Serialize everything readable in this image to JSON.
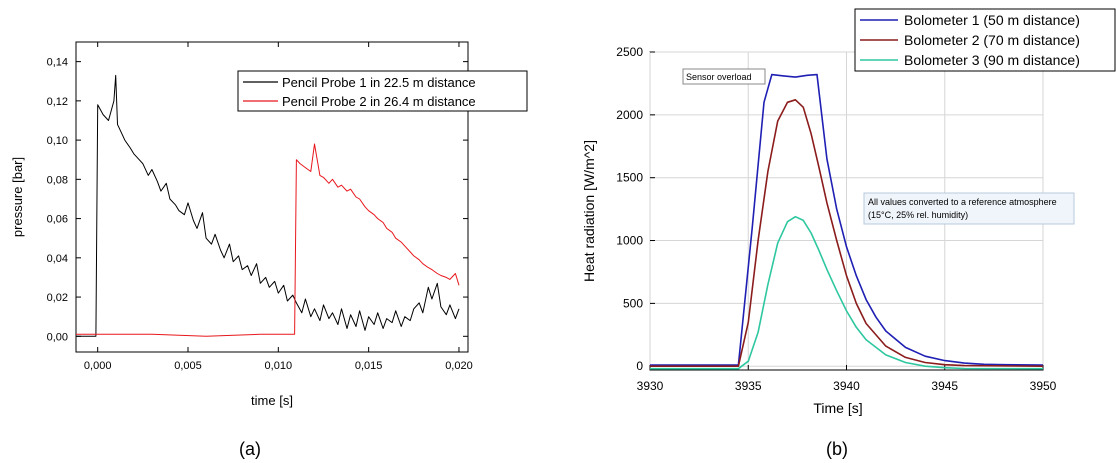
{
  "chart_data": [
    {
      "type": "line",
      "panel_label": "(a)",
      "xlabel": "time [s]",
      "ylabel": "pressure [bar]",
      "xlim": [
        -0.0012,
        0.0205
      ],
      "ylim": [
        -0.008,
        0.15
      ],
      "xticks": [
        0.0,
        0.005,
        0.01,
        0.015,
        0.02
      ],
      "xtick_labels": [
        "0,000",
        "0,005",
        "0,010",
        "0,015",
        "0,020"
      ],
      "yticks": [
        0.0,
        0.02,
        0.04,
        0.06,
        0.08,
        0.1,
        0.12,
        0.14
      ],
      "ytick_labels": [
        "0,00",
        "0,02",
        "0,04",
        "0,06",
        "0,08",
        "0,10",
        "0,12",
        "0,14"
      ],
      "grid": false,
      "legend_position": "top-right",
      "series": [
        {
          "name": "Pencil Probe 1 in 22.5 m distance",
          "color": "#000000",
          "x": [
            -0.0012,
            -0.0001,
            0.0,
            0.0003,
            0.0006,
            0.0009,
            0.001,
            0.0011,
            0.0013,
            0.0015,
            0.0018,
            0.002,
            0.0023,
            0.0025,
            0.0028,
            0.003,
            0.0033,
            0.0035,
            0.0038,
            0.004,
            0.0043,
            0.0045,
            0.0048,
            0.005,
            0.0053,
            0.0055,
            0.0058,
            0.006,
            0.0063,
            0.0065,
            0.0068,
            0.007,
            0.0073,
            0.0075,
            0.0078,
            0.008,
            0.0083,
            0.0085,
            0.0088,
            0.009,
            0.0093,
            0.0095,
            0.0098,
            0.01,
            0.0103,
            0.0105,
            0.0108,
            0.011,
            0.0113,
            0.0115,
            0.0118,
            0.012,
            0.0123,
            0.0125,
            0.0128,
            0.013,
            0.0133,
            0.0135,
            0.0138,
            0.014,
            0.0143,
            0.0145,
            0.0148,
            0.015,
            0.0153,
            0.0155,
            0.0158,
            0.016,
            0.0163,
            0.0165,
            0.0168,
            0.017,
            0.0173,
            0.0175,
            0.0178,
            0.018,
            0.0183,
            0.0185,
            0.0188,
            0.019,
            0.0193,
            0.0195,
            0.0198,
            0.02
          ],
          "y": [
            0.0,
            0.0,
            0.118,
            0.113,
            0.11,
            0.12,
            0.133,
            0.108,
            0.104,
            0.1,
            0.096,
            0.093,
            0.09,
            0.088,
            0.082,
            0.085,
            0.079,
            0.074,
            0.078,
            0.07,
            0.067,
            0.064,
            0.062,
            0.068,
            0.059,
            0.055,
            0.063,
            0.05,
            0.047,
            0.052,
            0.044,
            0.04,
            0.047,
            0.038,
            0.041,
            0.034,
            0.036,
            0.031,
            0.037,
            0.027,
            0.03,
            0.025,
            0.028,
            0.022,
            0.026,
            0.018,
            0.021,
            0.017,
            0.012,
            0.019,
            0.01,
            0.014,
            0.008,
            0.016,
            0.009,
            0.012,
            0.006,
            0.014,
            0.004,
            0.011,
            0.005,
            0.013,
            0.003,
            0.01,
            0.006,
            0.012,
            0.004,
            0.009,
            0.007,
            0.013,
            0.005,
            0.01,
            0.008,
            0.014,
            0.017,
            0.012,
            0.025,
            0.019,
            0.027,
            0.015,
            0.011,
            0.016,
            0.009,
            0.014
          ]
        },
        {
          "name": "Pencil Probe 2 in 26.4 m distance",
          "color": "#e8171c",
          "x": [
            -0.0012,
            0.003,
            0.006,
            0.009,
            0.0109,
            0.011,
            0.0112,
            0.0115,
            0.0118,
            0.012,
            0.0123,
            0.0125,
            0.0128,
            0.013,
            0.0133,
            0.0135,
            0.0138,
            0.014,
            0.0143,
            0.0145,
            0.0148,
            0.015,
            0.0153,
            0.0155,
            0.0158,
            0.016,
            0.0163,
            0.0165,
            0.0168,
            0.017,
            0.0173,
            0.0175,
            0.0178,
            0.018,
            0.0183,
            0.0185,
            0.0188,
            0.019,
            0.0193,
            0.0195,
            0.0198,
            0.02
          ],
          "y": [
            0.001,
            0.001,
            0.0,
            0.001,
            0.001,
            0.09,
            0.088,
            0.086,
            0.084,
            0.098,
            0.082,
            0.081,
            0.078,
            0.08,
            0.076,
            0.077,
            0.074,
            0.075,
            0.071,
            0.07,
            0.066,
            0.064,
            0.062,
            0.06,
            0.058,
            0.055,
            0.053,
            0.05,
            0.048,
            0.046,
            0.043,
            0.041,
            0.039,
            0.037,
            0.035,
            0.034,
            0.032,
            0.031,
            0.03,
            0.029,
            0.032,
            0.026
          ]
        }
      ]
    },
    {
      "type": "line",
      "panel_label": "(b)",
      "xlabel": "Time [s]",
      "ylabel": "Heat radiation [W/m^2]",
      "xlim": [
        3930,
        3950
      ],
      "ylim": [
        -30,
        2500
      ],
      "xticks": [
        3930,
        3935,
        3940,
        3945,
        3950
      ],
      "yticks": [
        0,
        500,
        1000,
        1500,
        2000,
        2500
      ],
      "grid": true,
      "legend_position": "top-right",
      "annotations": [
        {
          "text": "Sensor overload"
        },
        {
          "text": "All values converted to a reference atmosphere",
          "text2": "(15°C, 25% rel. humidity)"
        }
      ],
      "series": [
        {
          "name": "Bolometer 1 (50 m distance)",
          "color": "#1f1fb4",
          "x": [
            3930,
            3934.5,
            3935.2,
            3935.8,
            3936.2,
            3936.8,
            3937.4,
            3938,
            3938.5,
            3939,
            3939.5,
            3940,
            3940.5,
            3941,
            3941.5,
            3942,
            3943,
            3944,
            3945,
            3946,
            3947,
            3948,
            3950
          ],
          "y": [
            10,
            10,
            1100,
            2100,
            2320,
            2310,
            2300,
            2315,
            2320,
            1650,
            1250,
            950,
            720,
            530,
            390,
            280,
            150,
            80,
            45,
            25,
            15,
            12,
            10
          ]
        },
        {
          "name": "Bolometer 2 (70 m distance)",
          "color": "#8b1c1c",
          "x": [
            3930,
            3934.5,
            3935,
            3935.5,
            3936,
            3936.5,
            3937,
            3937.4,
            3937.8,
            3938.2,
            3938.6,
            3939,
            3939.5,
            3940,
            3940.5,
            3941,
            3942,
            3943,
            3944,
            3945,
            3946,
            3950
          ],
          "y": [
            0,
            0,
            350,
            1000,
            1550,
            1950,
            2100,
            2120,
            2060,
            1850,
            1580,
            1300,
            1000,
            720,
            500,
            340,
            160,
            70,
            30,
            12,
            5,
            0
          ]
        },
        {
          "name": "Bolometer 3 (90 m distance)",
          "color": "#2ec7a0",
          "x": [
            3930,
            3934.5,
            3935,
            3935.5,
            3936,
            3936.5,
            3937,
            3937.4,
            3937.8,
            3938.2,
            3938.6,
            3939,
            3939.5,
            3940,
            3940.5,
            3941,
            3942,
            3943,
            3944,
            3945,
            3946,
            3950
          ],
          "y": [
            -20,
            -20,
            40,
            270,
            650,
            980,
            1150,
            1190,
            1160,
            1060,
            920,
            770,
            600,
            440,
            310,
            210,
            90,
            30,
            0,
            -12,
            -18,
            -20
          ]
        }
      ]
    }
  ]
}
